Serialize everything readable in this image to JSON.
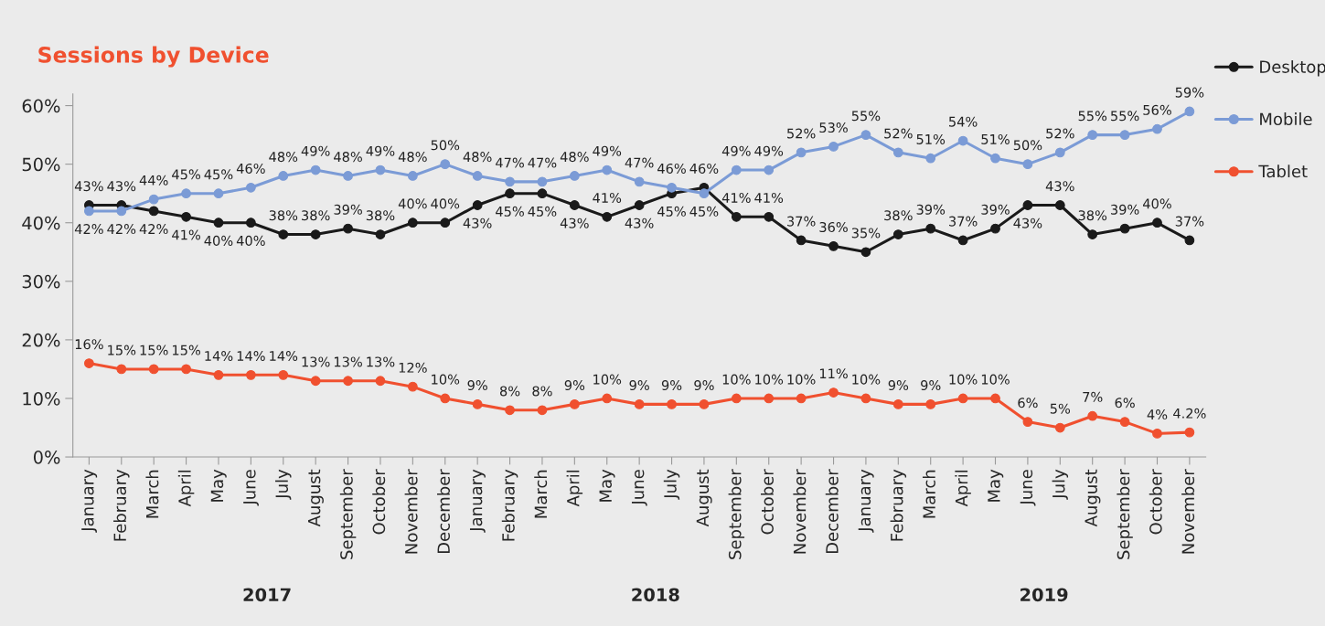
{
  "chart_data": {
    "type": "line",
    "title": "Sessions by Device",
    "categories": [
      "January",
      "February",
      "March",
      "April",
      "May",
      "June",
      "July",
      "August",
      "September",
      "October",
      "November",
      "December",
      "January",
      "February",
      "March",
      "April",
      "May",
      "June",
      "July",
      "August",
      "September",
      "October",
      "November",
      "December",
      "January",
      "February",
      "March",
      "April",
      "May",
      "June",
      "July",
      "August",
      "September",
      "October",
      "November"
    ],
    "series": [
      {
        "name": "Desktop",
        "color": "#1a1a1a",
        "values": [
          43,
          43,
          42,
          41,
          40,
          40,
          38,
          38,
          39,
          38,
          40,
          40,
          43,
          45,
          45,
          43,
          41,
          43,
          45,
          46,
          41,
          41,
          37,
          36,
          35,
          38,
          39,
          37,
          39,
          43,
          43,
          38,
          39,
          40,
          37
        ],
        "value_labels": [
          "43%",
          "43%",
          "42%",
          "41%",
          "40%",
          "40%",
          "38%",
          "38%",
          "39%",
          "38%",
          "40%",
          "40%",
          "43%",
          "45%",
          "45%",
          "43%",
          "41%",
          "43%",
          "45%",
          "46%",
          "41%",
          "41%",
          "37%",
          "36%",
          "35%",
          "38%",
          "39%",
          "37%",
          "39%",
          "43%",
          "43%",
          "38%",
          "39%",
          "40%",
          "37%"
        ]
      },
      {
        "name": "Mobile",
        "color": "#7b9bd6",
        "values": [
          42,
          42,
          44,
          45,
          45,
          46,
          48,
          49,
          48,
          49,
          48,
          50,
          48,
          47,
          47,
          48,
          49,
          47,
          46,
          45,
          49,
          49,
          52,
          53,
          55,
          52,
          51,
          54,
          51,
          50,
          52,
          55,
          55,
          56,
          59
        ],
        "value_labels": [
          "42%",
          "42%",
          "44%",
          "45%",
          "45%",
          "46%",
          "48%",
          "49%",
          "48%",
          "49%",
          "48%",
          "50%",
          "48%",
          "47%",
          "47%",
          "48%",
          "49%",
          "47%",
          "46%",
          "45%",
          "49%",
          "49%",
          "52%",
          "53%",
          "55%",
          "52%",
          "51%",
          "54%",
          "51%",
          "50%",
          "52%",
          "55%",
          "55%",
          "56%",
          "59%"
        ]
      },
      {
        "name": "Tablet",
        "color": "#f0502f",
        "values": [
          16,
          15,
          15,
          15,
          14,
          14,
          14,
          13,
          13,
          13,
          12,
          10,
          9,
          8,
          8,
          9,
          10,
          9,
          9,
          9,
          10,
          10,
          10,
          11,
          10,
          9,
          9,
          10,
          10,
          6,
          5,
          7,
          6,
          4,
          4.2
        ],
        "value_labels": [
          "16%",
          "15%",
          "15%",
          "15%",
          "14%",
          "14%",
          "14%",
          "13%",
          "13%",
          "13%",
          "12%",
          "10%",
          "9%",
          "8%",
          "8%",
          "9%",
          "10%",
          "9%",
          "9%",
          "9%",
          "10%",
          "10%",
          "10%",
          "11%",
          "10%",
          "9%",
          "9%",
          "10%",
          "10%",
          "6%",
          "5%",
          "7%",
          "6%",
          "4%",
          "4.2%"
        ]
      }
    ],
    "ylim": [
      0,
      62
    ],
    "yticks": [
      {
        "value": 0,
        "label": "0%"
      },
      {
        "value": 10,
        "label": "10%"
      },
      {
        "value": 20,
        "label": "20%"
      },
      {
        "value": 30,
        "label": "30%"
      },
      {
        "value": 40,
        "label": "40%"
      },
      {
        "value": 50,
        "label": "50%"
      },
      {
        "value": 60,
        "label": "60%"
      }
    ],
    "annotations": [
      "2017",
      "2018",
      "2019"
    ],
    "marker": "circle",
    "line_style": "solid",
    "grid": false,
    "legend": "top right"
  }
}
